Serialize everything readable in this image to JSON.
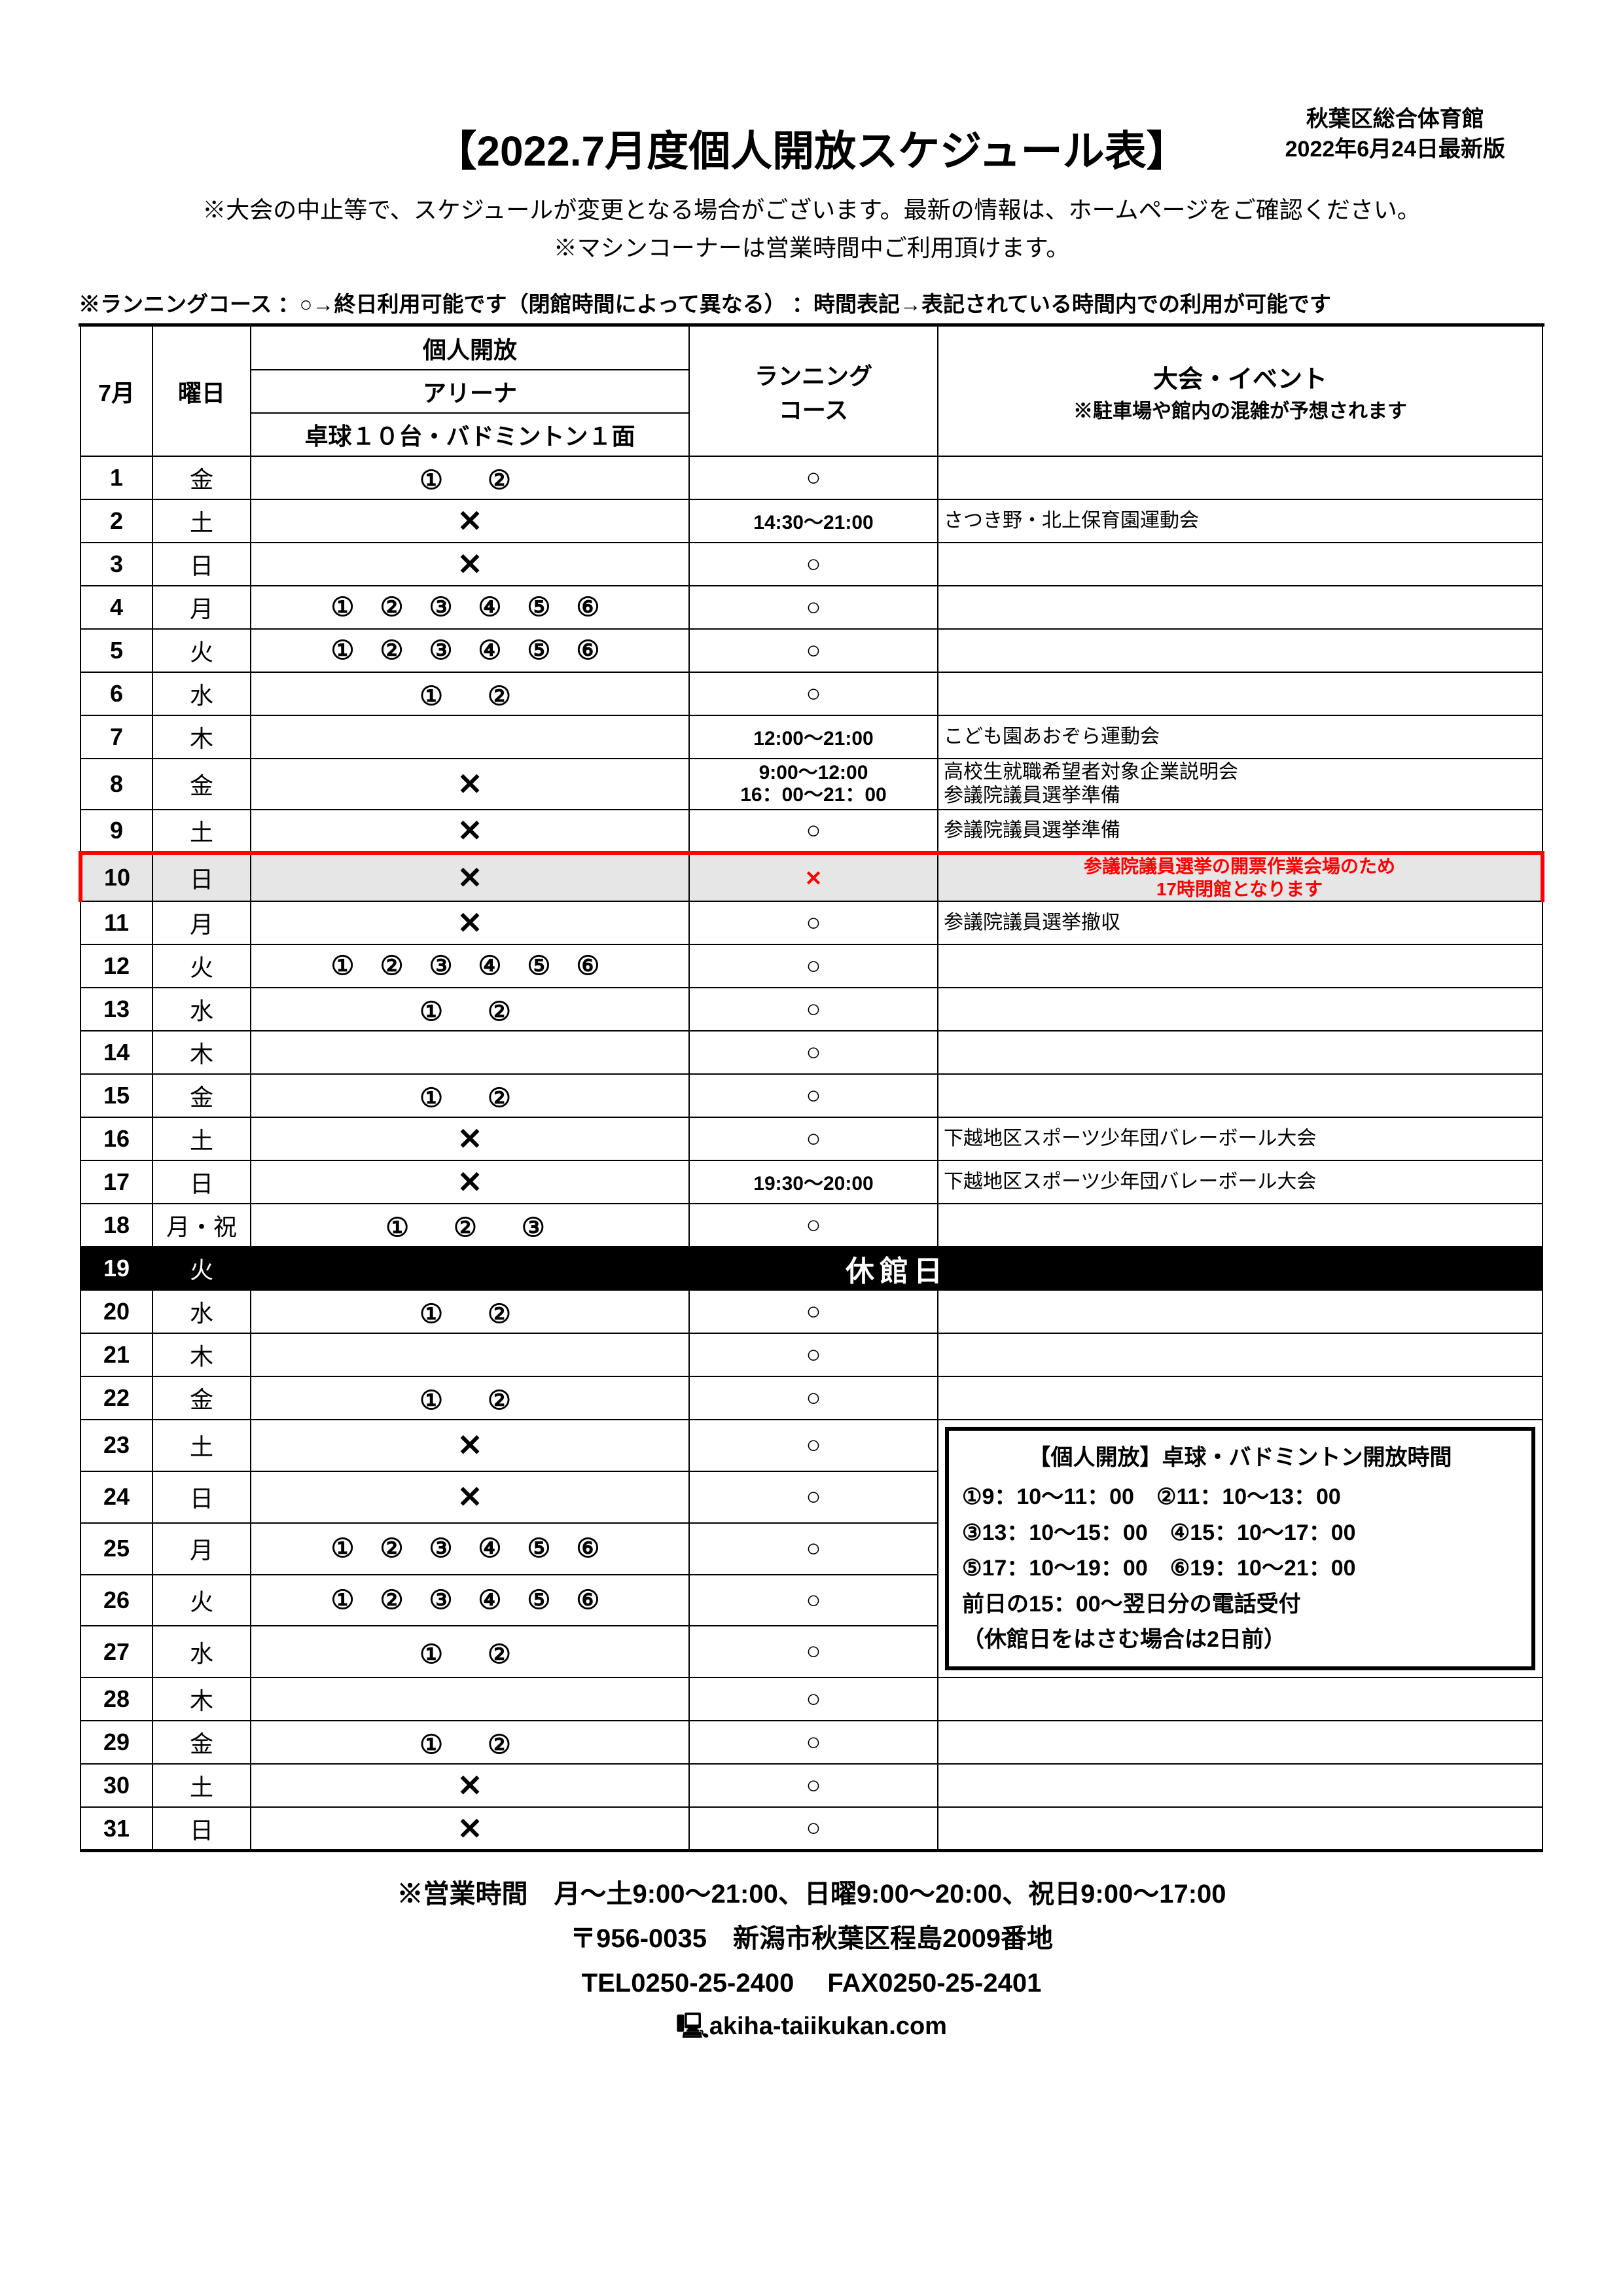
{
  "page": {
    "title": "【2022.7月度個人開放スケジュール表】",
    "facility_name": "秋葉区総合体育館",
    "updated": "2022年6月24日最新版",
    "note1": "※大会の中止等で、スケジュールが変更となる場合がございます。最新の情報は、ホームページをご確認ください。",
    "note2": "※マシンコーナーは営業時間中ご利用頂けます。",
    "running_note": "※ランニングコース  ：○→終日利用可能です（閉館時間によって異なる） ：時間表記→表記されている時間内での利用が可能です"
  },
  "headers": {
    "month": "7月",
    "day_of_week": "曜日",
    "kojin": "個人開放",
    "arena": "アリーナ",
    "arena_sub": "卓球１０台・バドミントン１面",
    "running": "ランニング",
    "course": "コース",
    "event": "大会・イベント",
    "event_sub": "※駐車場や館内の混雑が予想されます"
  },
  "symbol_sets": {
    "s12": "①　②",
    "s123456": "① ② ③ ④ ⑤ ⑥",
    "s123": "①　②　③"
  },
  "rows": [
    {
      "d": "1",
      "w": "金",
      "arena": "s12",
      "run": "○",
      "ev": ""
    },
    {
      "d": "2",
      "w": "土",
      "arena": "X",
      "run_time": "14:30～21:00",
      "ev": "さつき野・北上保育園運動会"
    },
    {
      "d": "3",
      "w": "日",
      "arena": "X",
      "run": "○",
      "ev": ""
    },
    {
      "d": "4",
      "w": "月",
      "arena": "s123456",
      "run": "○",
      "ev": ""
    },
    {
      "d": "5",
      "w": "火",
      "arena": "s123456",
      "run": "○",
      "ev": ""
    },
    {
      "d": "6",
      "w": "水",
      "arena": "s12",
      "run": "○",
      "ev": ""
    },
    {
      "d": "7",
      "w": "木",
      "arena": "",
      "run_time": "12:00～21:00",
      "ev": "こども園あおぞら運動会"
    },
    {
      "d": "8",
      "w": "金",
      "arena": "X",
      "run_time2": [
        "9:00～12:00",
        "16：00～21：00"
      ],
      "ev2": [
        "高校生就職希望者対象企業説明会",
        "参議院議員選挙準備"
      ],
      "tall": true
    },
    {
      "d": "9",
      "w": "土",
      "arena": "X",
      "run": "○",
      "ev": "参議院議員選挙準備"
    },
    {
      "d": "10",
      "w": "日",
      "arena": "X",
      "run": "redx",
      "ev_red": [
        "参議院議員選挙の開票作業会場のため",
        "17時閉館となります"
      ],
      "highlight": true
    },
    {
      "d": "11",
      "w": "月",
      "arena": "X",
      "run": "○",
      "ev": "参議院議員選挙撤収"
    },
    {
      "d": "12",
      "w": "火",
      "arena": "s123456",
      "run": "○",
      "ev": ""
    },
    {
      "d": "13",
      "w": "水",
      "arena": "s12",
      "run": "○",
      "ev": ""
    },
    {
      "d": "14",
      "w": "木",
      "arena": "",
      "run": "○",
      "ev": ""
    },
    {
      "d": "15",
      "w": "金",
      "arena": "s12",
      "run": "○",
      "ev": ""
    },
    {
      "d": "16",
      "w": "土",
      "arena": "X",
      "run": "○",
      "ev": "下越地区スポーツ少年団バレーボール大会"
    },
    {
      "d": "17",
      "w": "日",
      "arena": "X",
      "run_time": "19:30～20:00",
      "ev": "下越地区スポーツ少年団バレーボール大会"
    },
    {
      "d": "18",
      "w": "月・祝",
      "arena": "s123",
      "run": "○",
      "ev": ""
    },
    {
      "d": "19",
      "w": "火",
      "closed": true,
      "closed_label": "休館日"
    },
    {
      "d": "20",
      "w": "水",
      "arena": "s12",
      "run": "○",
      "ev": ""
    },
    {
      "d": "21",
      "w": "木",
      "arena": "",
      "run": "○",
      "ev": ""
    },
    {
      "d": "22",
      "w": "金",
      "arena": "s12",
      "run": "○",
      "ev": ""
    },
    {
      "d": "23",
      "w": "土",
      "arena": "X",
      "run": "○",
      "info_start": true
    },
    {
      "d": "24",
      "w": "日",
      "arena": "X",
      "run": "○"
    },
    {
      "d": "25",
      "w": "月",
      "arena": "s123456",
      "run": "○"
    },
    {
      "d": "26",
      "w": "火",
      "arena": "s123456",
      "run": "○"
    },
    {
      "d": "27",
      "w": "水",
      "arena": "s12",
      "run": "○"
    },
    {
      "d": "28",
      "w": "木",
      "arena": "",
      "run": "○",
      "ev": ""
    },
    {
      "d": "29",
      "w": "金",
      "arena": "s12",
      "run": "○",
      "ev": ""
    },
    {
      "d": "30",
      "w": "土",
      "arena": "X",
      "run": "○",
      "ev": ""
    },
    {
      "d": "31",
      "w": "日",
      "arena": "X",
      "run": "○",
      "ev": ""
    }
  ],
  "info_box": {
    "title": "【個人開放】卓球・バドミントン開放時間",
    "lines": [
      "①9：10～11：00　②11：10～13：00",
      "③13：10～15：00　④15：10～17：00",
      "⑤17：10～19：00　⑥19：10～21：00",
      "前日の15：00～翌日分の電話受付",
      "（休館日をはさむ場合は2日前）"
    ]
  },
  "footer": {
    "hours": "※営業時間　月～土9:00～21:00、日曜9:00～20:00、祝日9:00～17:00",
    "address": "〒956-0035　新潟市秋葉区程島2009番地",
    "tel_fax": "TEL0250-25-2400　 FAX0250-25-2401",
    "url": "🖳akiha-taiikukan.com"
  },
  "style": {
    "highlight_border": "#ff0000",
    "highlight_bg": "#e6e6e6",
    "closed_bg": "#000000",
    "closed_fg": "#ffffff"
  }
}
